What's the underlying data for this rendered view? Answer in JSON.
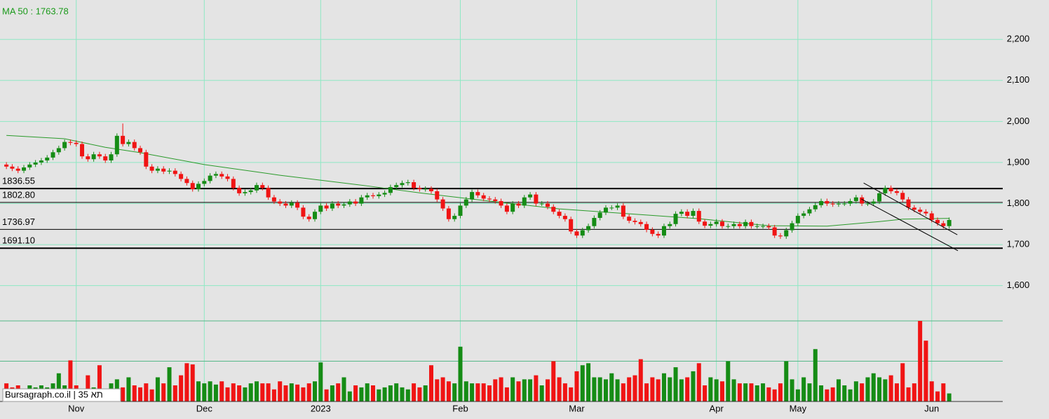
{
  "chart_data": {
    "type": "candlestick",
    "indicator_label": "MA 50 : 1763.78",
    "watermark": "Bursagraph.co.il | 35 תא",
    "xlim": [
      -1.1,
      171.2
    ],
    "xticks": [
      {
        "value": 12,
        "label": "Nov"
      },
      {
        "value": 34,
        "label": "Dec"
      },
      {
        "value": 54,
        "label": "2023"
      },
      {
        "value": 78,
        "label": "Feb"
      },
      {
        "value": 98,
        "label": "Mar"
      },
      {
        "value": 122,
        "label": "Apr"
      },
      {
        "value": 136,
        "label": "May"
      },
      {
        "value": 159,
        "label": "Jun"
      }
    ],
    "ylim": [
      1514,
      2296
    ],
    "yticks": [
      {
        "value": 1600,
        "label": "1,600"
      },
      {
        "value": 1700,
        "label": "1,700"
      },
      {
        "value": 1800,
        "label": "1,800"
      },
      {
        "value": 1900,
        "label": "1,900"
      },
      {
        "value": 2000,
        "label": "2,000"
      },
      {
        "value": 2100,
        "label": "2,100"
      },
      {
        "value": 2200,
        "label": "2,200"
      }
    ],
    "grid": true,
    "up_color": "#158c15",
    "down_color": "#f01414",
    "levels": [
      1836.55,
      {
        "value": 1802.8,
        "label": "1802.80"
      },
      1736.97,
      {
        "value": 1691.1,
        "label": "1691.10"
      }
    ],
    "open": [
      1895,
      1890,
      1885,
      1880,
      1888,
      1895,
      1900,
      1905,
      1912,
      1925,
      1935,
      1950,
      1948,
      1945,
      1915,
      1908,
      1920,
      1915,
      1905,
      1920,
      1965,
      1945,
      1950,
      1935,
      1925,
      1890,
      1880,
      1885,
      1878,
      1880,
      1872,
      1860,
      1850,
      1835,
      1848,
      1855,
      1868,
      1872,
      1866,
      1860,
      1838,
      1825,
      1828,
      1832,
      1845,
      1838,
      1815,
      1805,
      1800,
      1795,
      1802,
      1790,
      1768,
      1762,
      1780,
      1795,
      1788,
      1800,
      1795,
      1798,
      1805,
      1800,
      1815,
      1820,
      1818,
      1822,
      1826,
      1840,
      1845,
      1850,
      1852,
      1838,
      1835,
      1836,
      1830,
      1810,
      1788,
      1762,
      1770,
      1795,
      1810,
      1828,
      1820,
      1812,
      1810,
      1806,
      1795,
      1780,
      1800,
      1795,
      1815,
      1822,
      1800,
      1800,
      1792,
      1780,
      1770,
      1762,
      1732,
      1722,
      1735,
      1745,
      1765,
      1778,
      1790,
      1790,
      1795,
      1768,
      1758,
      1755,
      1750,
      1736,
      1726,
      1722,
      1745,
      1750,
      1775,
      1780,
      1770,
      1782,
      1756,
      1746,
      1750,
      1756,
      1745,
      1745,
      1750,
      1745,
      1755,
      1745,
      1745,
      1745,
      1742,
      1722,
      1720,
      1735,
      1752,
      1770,
      1776,
      1786,
      1796,
      1806,
      1800,
      1798,
      1800,
      1800,
      1806,
      1815,
      1800,
      1800,
      1805,
      1825,
      1838,
      1830,
      1826,
      1810,
      1790,
      1785,
      1780,
      1776,
      1760,
      1752,
      1745
    ],
    "close": [
      1890,
      1885,
      1880,
      1888,
      1895,
      1900,
      1905,
      1912,
      1925,
      1935,
      1950,
      1948,
      1945,
      1915,
      1908,
      1920,
      1915,
      1905,
      1920,
      1965,
      1945,
      1950,
      1935,
      1925,
      1890,
      1880,
      1885,
      1878,
      1880,
      1872,
      1860,
      1850,
      1835,
      1848,
      1855,
      1868,
      1872,
      1866,
      1860,
      1838,
      1825,
      1828,
      1832,
      1845,
      1838,
      1815,
      1805,
      1800,
      1795,
      1802,
      1790,
      1768,
      1762,
      1780,
      1795,
      1788,
      1800,
      1795,
      1798,
      1805,
      1800,
      1815,
      1820,
      1818,
      1822,
      1826,
      1840,
      1845,
      1850,
      1852,
      1838,
      1835,
      1836,
      1830,
      1810,
      1788,
      1762,
      1770,
      1795,
      1810,
      1828,
      1820,
      1812,
      1810,
      1806,
      1795,
      1780,
      1800,
      1795,
      1815,
      1822,
      1800,
      1800,
      1792,
      1780,
      1770,
      1762,
      1732,
      1722,
      1735,
      1745,
      1765,
      1778,
      1790,
      1790,
      1795,
      1768,
      1758,
      1755,
      1750,
      1736,
      1726,
      1722,
      1745,
      1750,
      1775,
      1780,
      1770,
      1782,
      1756,
      1746,
      1750,
      1756,
      1745,
      1745,
      1750,
      1745,
      1755,
      1745,
      1745,
      1745,
      1742,
      1722,
      1720,
      1735,
      1752,
      1770,
      1776,
      1786,
      1796,
      1806,
      1800,
      1798,
      1800,
      1800,
      1806,
      1815,
      1800,
      1800,
      1805,
      1825,
      1838,
      1830,
      1826,
      1810,
      1790,
      1785,
      1780,
      1776,
      1760,
      1752,
      1745,
      1760
    ],
    "high": [
      1901,
      1896,
      1891,
      1894,
      1901,
      1906,
      1911,
      1918,
      1931,
      1941,
      1956,
      1956,
      1954,
      1951,
      1921,
      1926,
      1926,
      1921,
      1926,
      1971,
      1995,
      1956,
      1956,
      1941,
      1931,
      1896,
      1891,
      1891,
      1886,
      1886,
      1878,
      1866,
      1856,
      1854,
      1861,
      1874,
      1878,
      1878,
      1872,
      1866,
      1844,
      1834,
      1838,
      1851,
      1851,
      1844,
      1821,
      1811,
      1806,
      1808,
      1808,
      1796,
      1774,
      1786,
      1801,
      1801,
      1806,
      1806,
      1804,
      1811,
      1811,
      1821,
      1826,
      1826,
      1828,
      1832,
      1846,
      1851,
      1856,
      1858,
      1858,
      1844,
      1842,
      1842,
      1836,
      1816,
      1794,
      1776,
      1801,
      1816,
      1834,
      1834,
      1826,
      1818,
      1816,
      1812,
      1801,
      1806,
      1806,
      1821,
      1828,
      1828,
      1806,
      1806,
      1798,
      1786,
      1776,
      1768,
      1738,
      1741,
      1751,
      1771,
      1784,
      1796,
      1796,
      1801,
      1801,
      1774,
      1764,
      1761,
      1756,
      1742,
      1732,
      1751,
      1756,
      1781,
      1786,
      1786,
      1788,
      1788,
      1762,
      1756,
      1762,
      1762,
      1751,
      1756,
      1756,
      1761,
      1761,
      1751,
      1751,
      1751,
      1748,
      1728,
      1741,
      1758,
      1776,
      1782,
      1792,
      1802,
      1812,
      1812,
      1806,
      1806,
      1806,
      1812,
      1821,
      1821,
      1806,
      1811,
      1831,
      1844,
      1844,
      1836,
      1832,
      1816,
      1796,
      1791,
      1786,
      1782,
      1766,
      1758,
      1766
    ],
    "low": [
      1884,
      1879,
      1874,
      1874,
      1882,
      1889,
      1894,
      1899,
      1906,
      1919,
      1929,
      1942,
      1939,
      1909,
      1902,
      1902,
      1909,
      1899,
      1899,
      1914,
      1939,
      1939,
      1929,
      1919,
      1884,
      1874,
      1874,
      1872,
      1872,
      1866,
      1854,
      1844,
      1829,
      1829,
      1842,
      1849,
      1862,
      1860,
      1854,
      1832,
      1819,
      1819,
      1822,
      1826,
      1832,
      1809,
      1799,
      1794,
      1789,
      1789,
      1784,
      1762,
      1756,
      1756,
      1774,
      1782,
      1782,
      1789,
      1789,
      1792,
      1794,
      1794,
      1809,
      1812,
      1812,
      1816,
      1820,
      1834,
      1839,
      1844,
      1832,
      1829,
      1829,
      1824,
      1804,
      1782,
      1756,
      1756,
      1764,
      1789,
      1804,
      1814,
      1806,
      1804,
      1800,
      1789,
      1774,
      1774,
      1789,
      1789,
      1809,
      1794,
      1794,
      1786,
      1774,
      1764,
      1756,
      1726,
      1716,
      1716,
      1729,
      1739,
      1759,
      1772,
      1784,
      1784,
      1762,
      1752,
      1749,
      1744,
      1730,
      1720,
      1716,
      1716,
      1739,
      1744,
      1769,
      1764,
      1764,
      1750,
      1740,
      1740,
      1744,
      1739,
      1739,
      1739,
      1739,
      1739,
      1739,
      1739,
      1739,
      1736,
      1716,
      1714,
      1714,
      1729,
      1746,
      1764,
      1770,
      1780,
      1790,
      1794,
      1792,
      1792,
      1794,
      1794,
      1800,
      1794,
      1794,
      1794,
      1799,
      1819,
      1824,
      1820,
      1804,
      1784,
      1779,
      1774,
      1770,
      1754,
      1746,
      1739,
      1739
    ],
    "volume_ylim": [
      0,
      2
    ],
    "volume_gridlines": [
      1,
      2
    ],
    "volume": [
      0.45,
      0.35,
      0.4,
      0.3,
      0.4,
      0.35,
      0.4,
      0.35,
      0.45,
      0.7,
      0.4,
      1.02,
      0.4,
      0.3,
      0.65,
      0.35,
      0.9,
      0.3,
      0.45,
      0.55,
      0.35,
      0.6,
      0.4,
      0.35,
      0.45,
      0.3,
      0.6,
      0.45,
      0.85,
      0.4,
      0.65,
      0.95,
      0.92,
      0.5,
      0.45,
      0.5,
      0.42,
      0.5,
      0.35,
      0.45,
      0.4,
      0.35,
      0.45,
      0.5,
      0.45,
      0.45,
      0.3,
      0.5,
      0.4,
      0.45,
      0.42,
      0.35,
      0.45,
      0.5,
      0.97,
      0.3,
      0.4,
      0.45,
      0.6,
      0.25,
      0.4,
      0.35,
      0.45,
      0.4,
      0.3,
      0.35,
      0.4,
      0.45,
      0.35,
      0.3,
      0.45,
      0.35,
      0.4,
      0.9,
      0.55,
      0.6,
      0.5,
      0.45,
      1.36,
      0.5,
      0.45,
      0.45,
      0.45,
      0.4,
      0.55,
      0.6,
      0.35,
      0.6,
      0.5,
      0.55,
      0.55,
      0.65,
      0.4,
      0.55,
      1.0,
      0.6,
      0.45,
      0.35,
      0.75,
      0.9,
      0.95,
      0.6,
      0.6,
      0.55,
      0.7,
      0.55,
      0.45,
      0.6,
      0.65,
      1.05,
      0.45,
      0.6,
      0.55,
      0.7,
      0.6,
      0.85,
      0.55,
      0.6,
      0.75,
      0.95,
      0.4,
      0.6,
      0.55,
      0.5,
      1.0,
      0.55,
      0.45,
      0.45,
      0.45,
      0.4,
      0.45,
      0.35,
      0.3,
      0.45,
      1.0,
      0.55,
      0.3,
      0.6,
      0.45,
      1.3,
      0.4,
      0.3,
      0.35,
      0.55,
      0.4,
      0.3,
      0.5,
      0.45,
      0.6,
      0.7,
      0.6,
      0.55,
      0.65,
      0.45,
      0.95,
      0.35,
      0.45,
      2.0,
      1.51,
      0.5,
      0.25,
      0.45,
      0.2
    ],
    "ma": {
      "color": "#2a9a2a",
      "x": [
        0,
        10,
        17,
        23,
        34,
        47,
        62,
        71,
        83,
        95,
        107,
        119,
        131,
        141,
        150,
        154,
        162
      ],
      "values": [
        1966,
        1958,
        1937,
        1924,
        1895,
        1869,
        1843,
        1826,
        1806,
        1787,
        1775,
        1763,
        1746,
        1745,
        1756,
        1762,
        1764
      ]
    },
    "trendlines": [
      {
        "x": [
          147.3,
          163.4
        ],
        "values": [
          1850,
          1724
        ]
      },
      {
        "x": [
          146.9,
          163.5
        ],
        "values": [
          1811,
          1685
        ]
      }
    ]
  }
}
